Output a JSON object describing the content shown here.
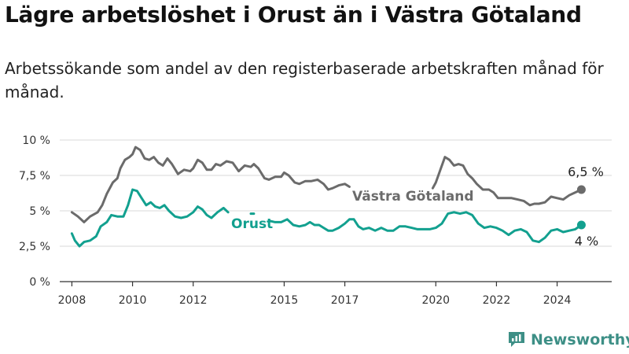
{
  "title": "Lägre arbetslöshet i Orust än i Västra Götaland",
  "subtitle": "Arbetssökande som andel av den registerbaserade arbetskraften månad för månad.",
  "brand": "Newsworthy",
  "colors": {
    "vg": "#6b6b6b",
    "orust": "#12a08f",
    "grid": "#d8d8d8",
    "axis": "#333333",
    "brand": "#3d8f86"
  },
  "chart_data": {
    "type": "line",
    "xlim": [
      2007.6,
      2025.8
    ],
    "ylim": [
      0,
      10
    ],
    "x_ticks": [
      2008,
      2010,
      2012,
      2015,
      2017,
      2020,
      2022,
      2024
    ],
    "y_ticks": [
      {
        "value": 0,
        "label": "0 %"
      },
      {
        "value": 2.5,
        "label": "2,5 %"
      },
      {
        "value": 5,
        "label": "5 %"
      },
      {
        "value": 7.5,
        "label": "7,5 %"
      },
      {
        "value": 10,
        "label": "10 %"
      }
    ],
    "series": [
      {
        "name": "Västra Götaland",
        "color_key": "vg",
        "end_label": "6,5 %",
        "segments": [
          [
            [
              2008,
              4.9
            ],
            [
              2008.2,
              4.6
            ],
            [
              2008.4,
              4.2
            ],
            [
              2008.6,
              4.6
            ],
            [
              2008.85,
              4.9
            ],
            [
              2009.0,
              5.4
            ],
            [
              2009.15,
              6.2
            ],
            [
              2009.35,
              7.0
            ],
            [
              2009.5,
              7.3
            ],
            [
              2009.6,
              8.0
            ],
            [
              2009.75,
              8.6
            ],
            [
              2009.9,
              8.8
            ],
            [
              2010.0,
              9.0
            ],
            [
              2010.1,
              9.5
            ],
            [
              2010.25,
              9.3
            ],
            [
              2010.4,
              8.7
            ],
            [
              2010.55,
              8.6
            ],
            [
              2010.7,
              8.8
            ],
            [
              2010.85,
              8.4
            ],
            [
              2011.0,
              8.2
            ],
            [
              2011.15,
              8.7
            ],
            [
              2011.3,
              8.3
            ],
            [
              2011.5,
              7.6
            ],
            [
              2011.7,
              7.9
            ],
            [
              2011.9,
              7.8
            ],
            [
              2012.0,
              8.0
            ],
            [
              2012.15,
              8.6
            ],
            [
              2012.3,
              8.4
            ],
            [
              2012.45,
              7.9
            ],
            [
              2012.6,
              7.9
            ],
            [
              2012.75,
              8.3
            ],
            [
              2012.9,
              8.2
            ],
            [
              2013.1,
              8.5
            ],
            [
              2013.3,
              8.4
            ],
            [
              2013.5,
              7.8
            ],
            [
              2013.7,
              8.2
            ],
            [
              2013.9,
              8.1
            ],
            [
              2014.0,
              8.3
            ],
            [
              2014.15,
              8.0
            ],
            [
              2014.35,
              7.3
            ],
            [
              2014.5,
              7.2
            ],
            [
              2014.7,
              7.4
            ],
            [
              2014.9,
              7.4
            ],
            [
              2015.0,
              7.7
            ],
            [
              2015.15,
              7.5
            ],
            [
              2015.35,
              7.0
            ],
            [
              2015.5,
              6.9
            ],
            [
              2015.7,
              7.1
            ],
            [
              2015.9,
              7.1
            ],
            [
              2016.1,
              7.2
            ],
            [
              2016.3,
              6.9
            ],
            [
              2016.45,
              6.5
            ],
            [
              2016.6,
              6.6
            ],
            [
              2016.8,
              6.8
            ],
            [
              2017.0,
              6.9
            ],
            [
              2017.15,
              6.7
            ]
          ]
        ],
        "resume": [
          [
            2019.9,
            6.6
          ],
          [
            2020.0,
            7.0
          ],
          [
            2020.15,
            7.9
          ],
          [
            2020.3,
            8.8
          ],
          [
            2020.45,
            8.6
          ],
          [
            2020.6,
            8.2
          ],
          [
            2020.75,
            8.3
          ],
          [
            2020.9,
            8.2
          ],
          [
            2021.05,
            7.6
          ],
          [
            2021.2,
            7.3
          ],
          [
            2021.35,
            6.9
          ],
          [
            2021.55,
            6.5
          ],
          [
            2021.75,
            6.5
          ],
          [
            2021.9,
            6.3
          ],
          [
            2022.05,
            5.9
          ],
          [
            2022.3,
            5.9
          ],
          [
            2022.5,
            5.9
          ],
          [
            2022.7,
            5.8
          ],
          [
            2022.9,
            5.7
          ],
          [
            2023.1,
            5.4
          ],
          [
            2023.25,
            5.5
          ],
          [
            2023.4,
            5.5
          ],
          [
            2023.6,
            5.6
          ],
          [
            2023.8,
            6.0
          ],
          [
            2024.0,
            5.9
          ],
          [
            2024.2,
            5.8
          ],
          [
            2024.4,
            6.1
          ],
          [
            2024.6,
            6.3
          ],
          [
            2024.8,
            6.5
          ]
        ]
      },
      {
        "name": "Orust",
        "color_key": "orust",
        "end_label": "4 %",
        "segments": [
          [
            [
              2008,
              3.4
            ],
            [
              2008.1,
              2.9
            ],
            [
              2008.25,
              2.5
            ],
            [
              2008.4,
              2.8
            ],
            [
              2008.6,
              2.9
            ],
            [
              2008.8,
              3.2
            ],
            [
              2008.95,
              3.9
            ],
            [
              2009.15,
              4.2
            ],
            [
              2009.3,
              4.7
            ],
            [
              2009.5,
              4.6
            ],
            [
              2009.7,
              4.6
            ],
            [
              2009.85,
              5.4
            ],
            [
              2010.0,
              6.5
            ],
            [
              2010.15,
              6.4
            ],
            [
              2010.3,
              5.9
            ],
            [
              2010.45,
              5.4
            ],
            [
              2010.6,
              5.6
            ],
            [
              2010.75,
              5.3
            ],
            [
              2010.9,
              5.2
            ],
            [
              2011.05,
              5.4
            ],
            [
              2011.2,
              5.0
            ],
            [
              2011.4,
              4.6
            ],
            [
              2011.6,
              4.5
            ],
            [
              2011.8,
              4.6
            ],
            [
              2012.0,
              4.9
            ],
            [
              2012.15,
              5.3
            ],
            [
              2012.3,
              5.1
            ],
            [
              2012.45,
              4.7
            ],
            [
              2012.6,
              4.5
            ],
            [
              2012.8,
              4.9
            ],
            [
              2013.0,
              5.2
            ],
            [
              2013.15,
              4.9
            ]
          ],
          [
            [
              2013.9,
              4.8
            ],
            [
              2014.0,
              4.8
            ]
          ],
          [
            [
              2014.5,
              4.3
            ],
            [
              2014.7,
              4.2
            ],
            [
              2014.9,
              4.2
            ],
            [
              2015.1,
              4.4
            ],
            [
              2015.3,
              4.0
            ],
            [
              2015.5,
              3.9
            ],
            [
              2015.7,
              4.0
            ],
            [
              2015.85,
              4.2
            ],
            [
              2016.0,
              4.0
            ],
            [
              2016.15,
              4.0
            ],
            [
              2016.3,
              3.8
            ],
            [
              2016.45,
              3.6
            ],
            [
              2016.6,
              3.6
            ],
            [
              2016.8,
              3.8
            ],
            [
              2017.0,
              4.1
            ],
            [
              2017.15,
              4.4
            ],
            [
              2017.3,
              4.4
            ],
            [
              2017.45,
              3.9
            ],
            [
              2017.6,
              3.7
            ],
            [
              2017.8,
              3.8
            ],
            [
              2018.0,
              3.6
            ],
            [
              2018.2,
              3.8
            ],
            [
              2018.4,
              3.6
            ],
            [
              2018.6,
              3.6
            ],
            [
              2018.8,
              3.9
            ],
            [
              2019.0,
              3.9
            ],
            [
              2019.2,
              3.8
            ],
            [
              2019.4,
              3.7
            ],
            [
              2019.6,
              3.7
            ],
            [
              2019.8,
              3.7
            ],
            [
              2020.0,
              3.8
            ],
            [
              2020.2,
              4.1
            ],
            [
              2020.4,
              4.8
            ],
            [
              2020.6,
              4.9
            ],
            [
              2020.8,
              4.8
            ],
            [
              2021.0,
              4.9
            ],
            [
              2021.2,
              4.7
            ],
            [
              2021.4,
              4.1
            ],
            [
              2021.6,
              3.8
            ],
            [
              2021.8,
              3.9
            ],
            [
              2022.0,
              3.8
            ],
            [
              2022.2,
              3.6
            ],
            [
              2022.4,
              3.3
            ],
            [
              2022.6,
              3.6
            ],
            [
              2022.8,
              3.7
            ],
            [
              2023.0,
              3.5
            ],
            [
              2023.2,
              2.9
            ],
            [
              2023.4,
              2.8
            ],
            [
              2023.6,
              3.1
            ],
            [
              2023.8,
              3.6
            ],
            [
              2024.0,
              3.7
            ],
            [
              2024.2,
              3.5
            ],
            [
              2024.4,
              3.6
            ],
            [
              2024.6,
              3.7
            ],
            [
              2024.8,
              4.0
            ]
          ]
        ]
      }
    ]
  }
}
